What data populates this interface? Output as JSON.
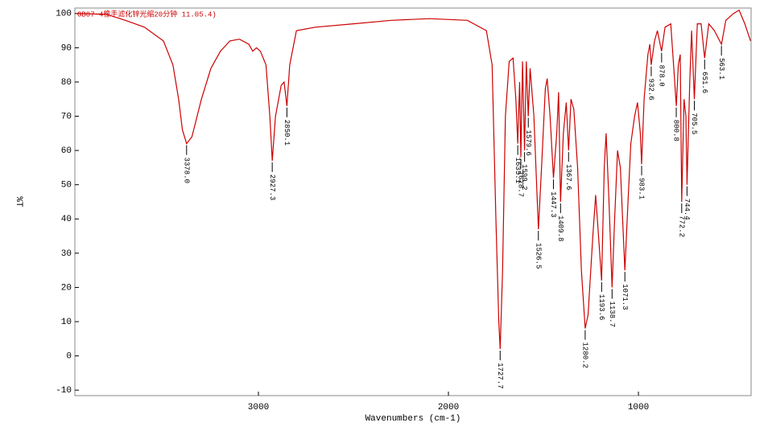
{
  "chart_data": {
    "type": "line",
    "title": "GB07-4橡手滤化锌光缩20分钟 11.05.4)",
    "xlabel": "Wavenumbers (cm-1)",
    "ylabel": "%T",
    "xlim": [
      3966,
      407
    ],
    "ylim": [
      -11.6,
      101.6
    ],
    "xticks": [
      3000,
      2000,
      1000
    ],
    "yticks": [
      -10,
      0,
      10,
      20,
      30,
      40,
      50,
      60,
      70,
      80,
      90,
      100
    ],
    "x": [
      3960,
      3800,
      3700,
      3600,
      3500,
      3450,
      3420,
      3400,
      3378.0,
      3350,
      3300,
      3250,
      3200,
      3150,
      3100,
      3050,
      3030,
      3010,
      2990,
      2960,
      2940,
      2927.3,
      2910,
      2880,
      2865,
      2850.1,
      2835,
      2800,
      2700,
      2500,
      2300,
      2100,
      1900,
      1800,
      1770,
      1750,
      1735,
      1727.7,
      1715,
      1700,
      1680,
      1660,
      1645,
      1635.1,
      1625,
      1618.7,
      1610,
      1599.2,
      1590,
      1579.6,
      1570,
      1550,
      1526.5,
      1510,
      1490,
      1480,
      1465,
      1447.3,
      1430,
      1420,
      1409.8,
      1395,
      1380,
      1367.6,
      1355,
      1340,
      1320,
      1300,
      1280.2,
      1265,
      1240,
      1225,
      1210,
      1193.6,
      1180,
      1170,
      1155,
      1138.7,
      1125,
      1110,
      1095,
      1071.3,
      1055,
      1040,
      1020,
      1005,
      990,
      983.1,
      970,
      950,
      940,
      932.6,
      915,
      900,
      878.0,
      860,
      830,
      815,
      800.8,
      790,
      780,
      772.2,
      760,
      750,
      744.4,
      730,
      720,
      705.5,
      690,
      670,
      651.6,
      630,
      600,
      563.1,
      540,
      500,
      470,
      440,
      410
    ],
    "series": [
      {
        "name": "%T",
        "color": "#cc0000",
        "values": [
          100,
          99.8,
          98,
          96,
          92,
          85,
          75,
          66,
          62,
          64,
          75,
          84,
          89,
          92,
          92.5,
          91,
          89,
          90,
          89,
          85,
          70,
          57,
          70,
          79,
          80,
          73,
          85,
          95,
          96,
          97,
          98,
          98.5,
          98,
          95,
          85,
          40,
          10,
          2,
          25,
          70,
          86,
          87,
          75,
          62,
          80,
          58,
          86,
          60,
          86,
          70,
          84,
          70,
          37,
          55,
          78,
          81,
          70,
          52,
          65,
          77,
          45,
          65,
          74,
          60,
          75,
          72,
          55,
          25,
          8,
          12,
          35,
          47,
          35,
          22,
          55,
          65,
          45,
          20,
          40,
          60,
          55,
          25,
          45,
          62,
          70,
          74,
          65,
          56,
          75,
          88,
          91,
          85,
          92,
          95,
          89,
          96,
          97,
          85,
          73,
          85,
          88,
          45,
          75,
          70,
          50,
          80,
          95,
          75,
          97,
          97,
          87,
          97,
          95,
          91,
          98,
          100,
          101,
          97,
          92
        ]
      }
    ],
    "annotations": [
      {
        "x": 3378.0,
        "y": 62,
        "label": "3378.0"
      },
      {
        "x": 2927.3,
        "y": 57,
        "label": "2927.3"
      },
      {
        "x": 2850.1,
        "y": 73,
        "label": "2850.1"
      },
      {
        "x": 1727.7,
        "y": 2,
        "label": "1727.7"
      },
      {
        "x": 1635.1,
        "y": 62,
        "label": "1635.1"
      },
      {
        "x": 1618.7,
        "y": 58,
        "label": "1618.7"
      },
      {
        "x": 1599.2,
        "y": 60,
        "label": "1599.2"
      },
      {
        "x": 1579.6,
        "y": 70,
        "label": "1579.6"
      },
      {
        "x": 1526.5,
        "y": 37,
        "label": "1526.5"
      },
      {
        "x": 1447.3,
        "y": 52,
        "label": "1447.3"
      },
      {
        "x": 1409.8,
        "y": 45,
        "label": "1409.8"
      },
      {
        "x": 1367.6,
        "y": 60,
        "label": "1367.6"
      },
      {
        "x": 1280.2,
        "y": 8,
        "label": "1280.2"
      },
      {
        "x": 1193.6,
        "y": 22,
        "label": "1193.6"
      },
      {
        "x": 1138.7,
        "y": 20,
        "label": "1138.7"
      },
      {
        "x": 1071.3,
        "y": 25,
        "label": "1071.3"
      },
      {
        "x": 983.1,
        "y": 56,
        "label": "983.1"
      },
      {
        "x": 932.6,
        "y": 85,
        "label": "932.6"
      },
      {
        "x": 878.0,
        "y": 89,
        "label": "878.0"
      },
      {
        "x": 800.8,
        "y": 73,
        "label": "800.8"
      },
      {
        "x": 772.2,
        "y": 45,
        "label": "772.2"
      },
      {
        "x": 744.4,
        "y": 50,
        "label": "744.4"
      },
      {
        "x": 705.5,
        "y": 75,
        "label": "705.5"
      },
      {
        "x": 651.6,
        "y": 87,
        "label": "651.6"
      },
      {
        "x": 563.1,
        "y": 91,
        "label": "563.1"
      }
    ]
  }
}
